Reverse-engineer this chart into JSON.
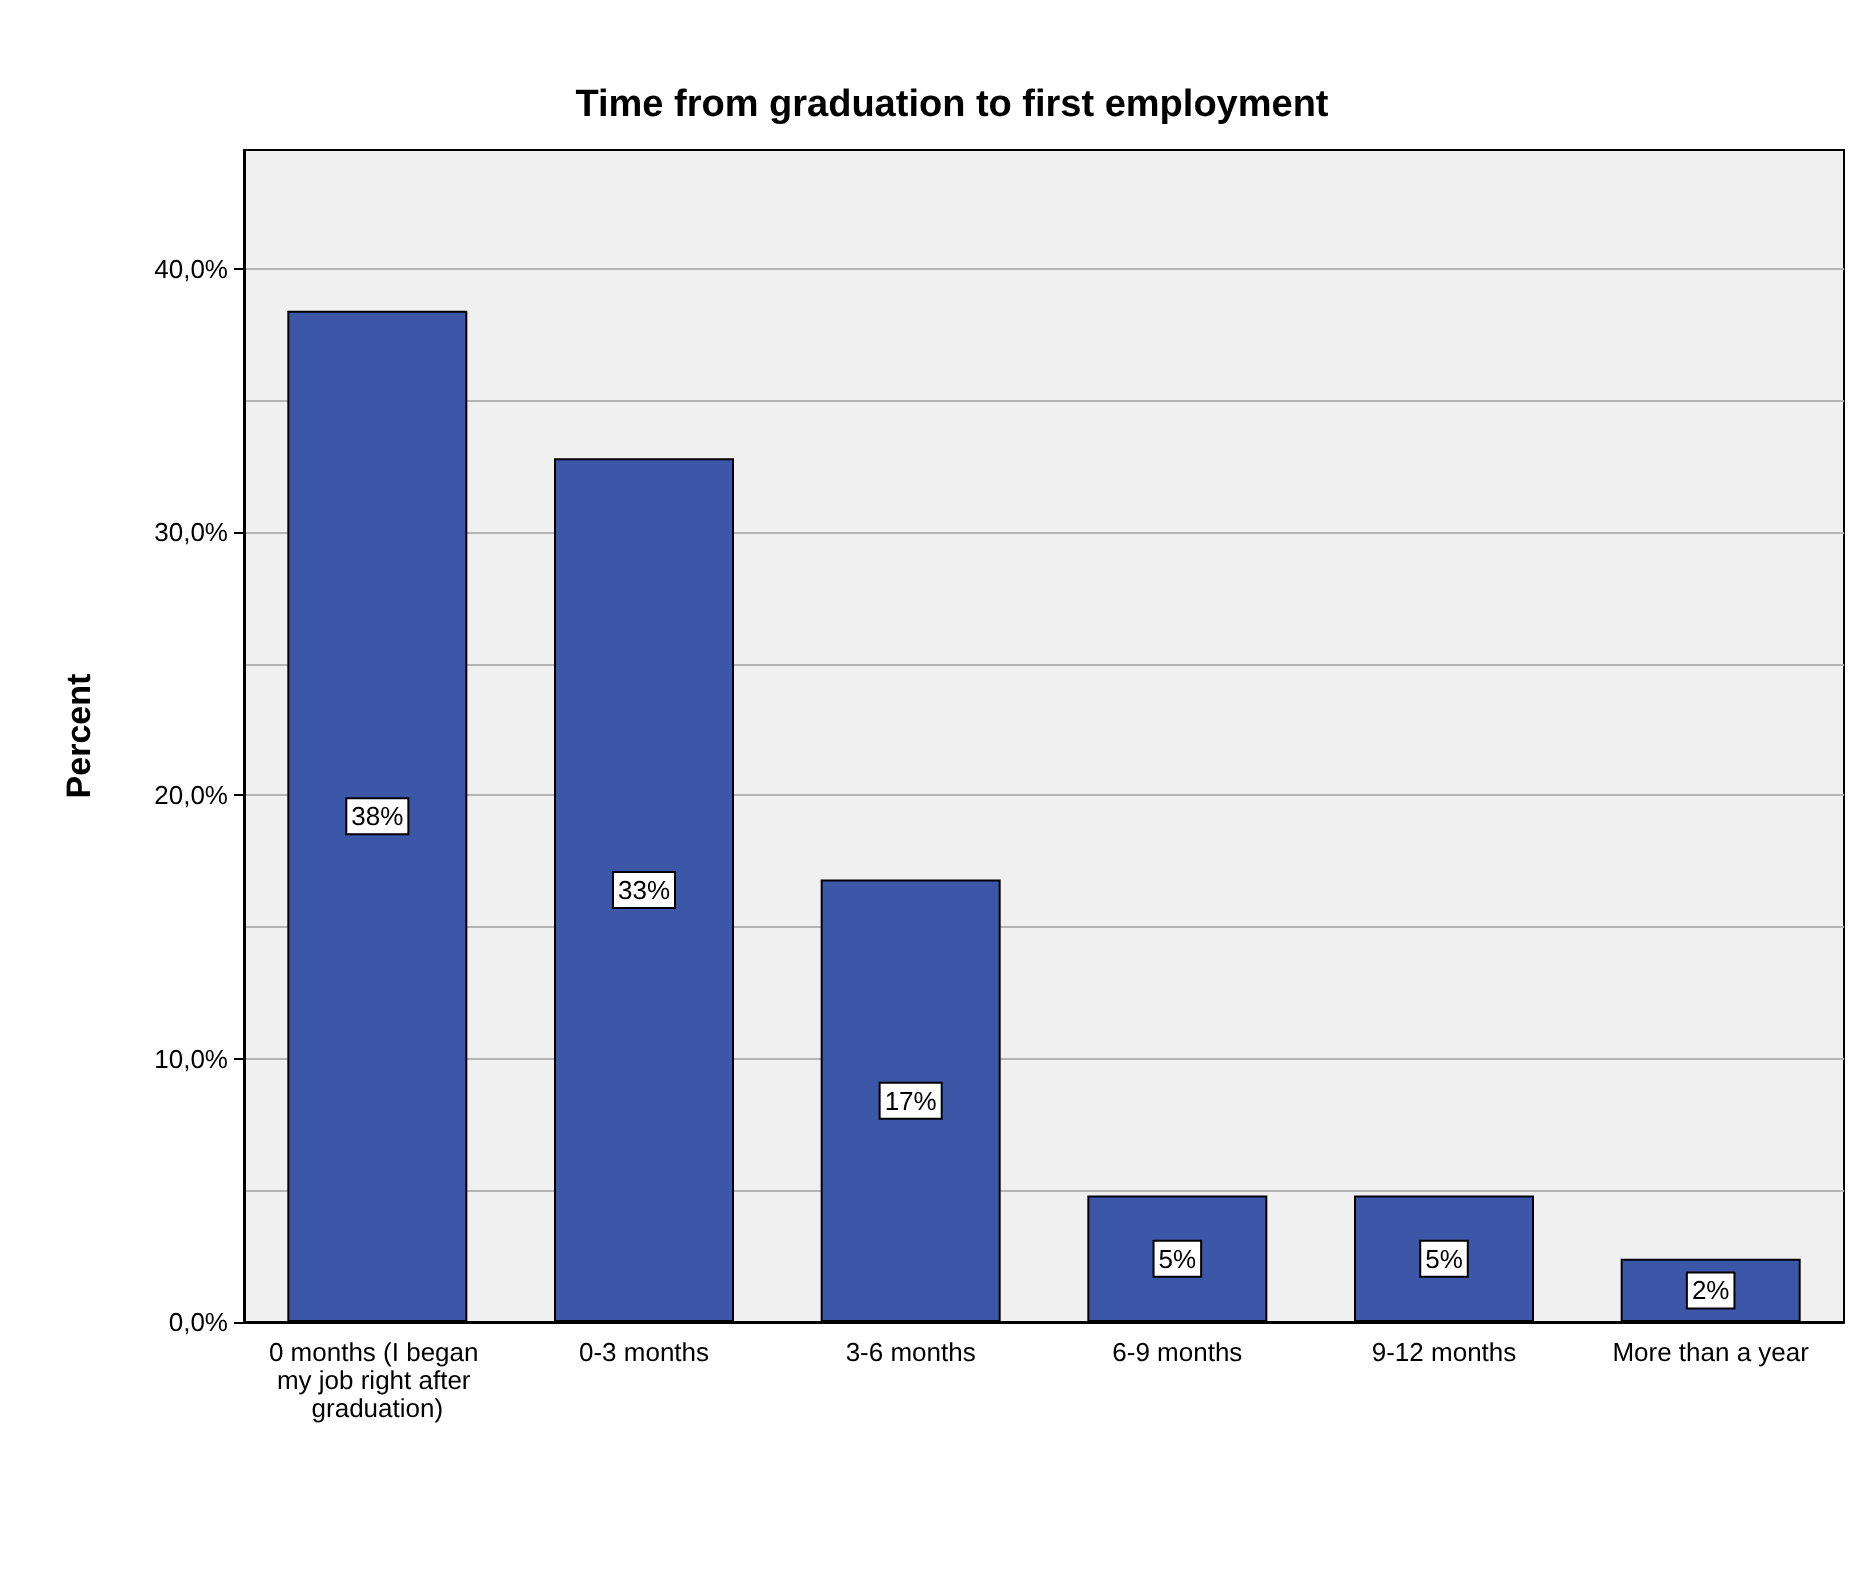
{
  "chart_data": {
    "type": "bar",
    "title": "Time from graduation to first employment",
    "ylabel": "Percent",
    "categories": [
      "0 months (I began my job right after graduation)",
      "0-3 months",
      "3-6 months",
      "6-9 months",
      "9-12 months",
      "More than a year"
    ],
    "values": [
      38.4,
      32.8,
      16.8,
      4.8,
      4.8,
      2.4
    ],
    "value_labels": [
      "38%",
      "33%",
      "17%",
      "5%",
      "5%",
      "2%"
    ],
    "color": "#3c56a8",
    "ylim": [
      0,
      44.5
    ],
    "yticks": [
      {
        "value": 0,
        "label": "0,0%"
      },
      {
        "value": 5,
        "label": null
      },
      {
        "value": 10,
        "label": "10,0%"
      },
      {
        "value": 15,
        "label": null
      },
      {
        "value": 20,
        "label": "20,0%"
      },
      {
        "value": 25,
        "label": null
      },
      {
        "value": 30,
        "label": "30,0%"
      },
      {
        "value": 35,
        "label": null
      },
      {
        "value": 40,
        "label": "40,0%"
      }
    ],
    "grid": "y"
  }
}
